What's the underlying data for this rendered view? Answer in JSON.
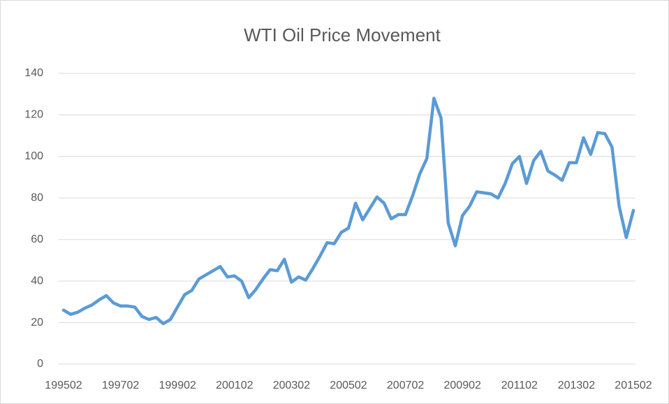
{
  "chart_data": {
    "type": "line",
    "title": "WTI Oil Price Movement",
    "categories": [
      "199502",
      null,
      null,
      null,
      null,
      null,
      null,
      null,
      "199702",
      null,
      null,
      null,
      null,
      null,
      null,
      null,
      "199902",
      null,
      null,
      null,
      null,
      null,
      null,
      null,
      "200102",
      null,
      null,
      null,
      null,
      null,
      null,
      null,
      "200302",
      null,
      null,
      null,
      null,
      null,
      null,
      null,
      "200502",
      null,
      null,
      null,
      null,
      null,
      null,
      null,
      "200702",
      null,
      null,
      null,
      null,
      null,
      null,
      null,
      "200902",
      null,
      null,
      null,
      null,
      null,
      null,
      null,
      "201102",
      null,
      null,
      null,
      null,
      null,
      null,
      null,
      "201302",
      null,
      null,
      null,
      null,
      null,
      null,
      null,
      "201502"
    ],
    "values": [
      26,
      24,
      25,
      27,
      28.5,
      31,
      33,
      29.5,
      28,
      28,
      27.5,
      23,
      21.5,
      22.5,
      19.5,
      21.5,
      27.5,
      33.5,
      35.5,
      41,
      43,
      45,
      47,
      42,
      42.5,
      40,
      32,
      36,
      41,
      45.5,
      45,
      50.5,
      39.5,
      42,
      40.5,
      46,
      52,
      58.5,
      58,
      63.5,
      65.5,
      77.5,
      69.5,
      75,
      80.5,
      77.5,
      70,
      72,
      72,
      81,
      91.5,
      99,
      128,
      118.5,
      68,
      57,
      71.5,
      76,
      83,
      82.5,
      82,
      80,
      87,
      96.5,
      100,
      87,
      98,
      102.5,
      93,
      91,
      88.5,
      97,
      97,
      109,
      101,
      111.5,
      111,
      104.5,
      76,
      61,
      74
    ],
    "color": "#5b9bd5",
    "ylim": [
      0,
      140
    ],
    "yticks": [
      0,
      20,
      40,
      60,
      80,
      100,
      120,
      140
    ],
    "grid": true
  }
}
